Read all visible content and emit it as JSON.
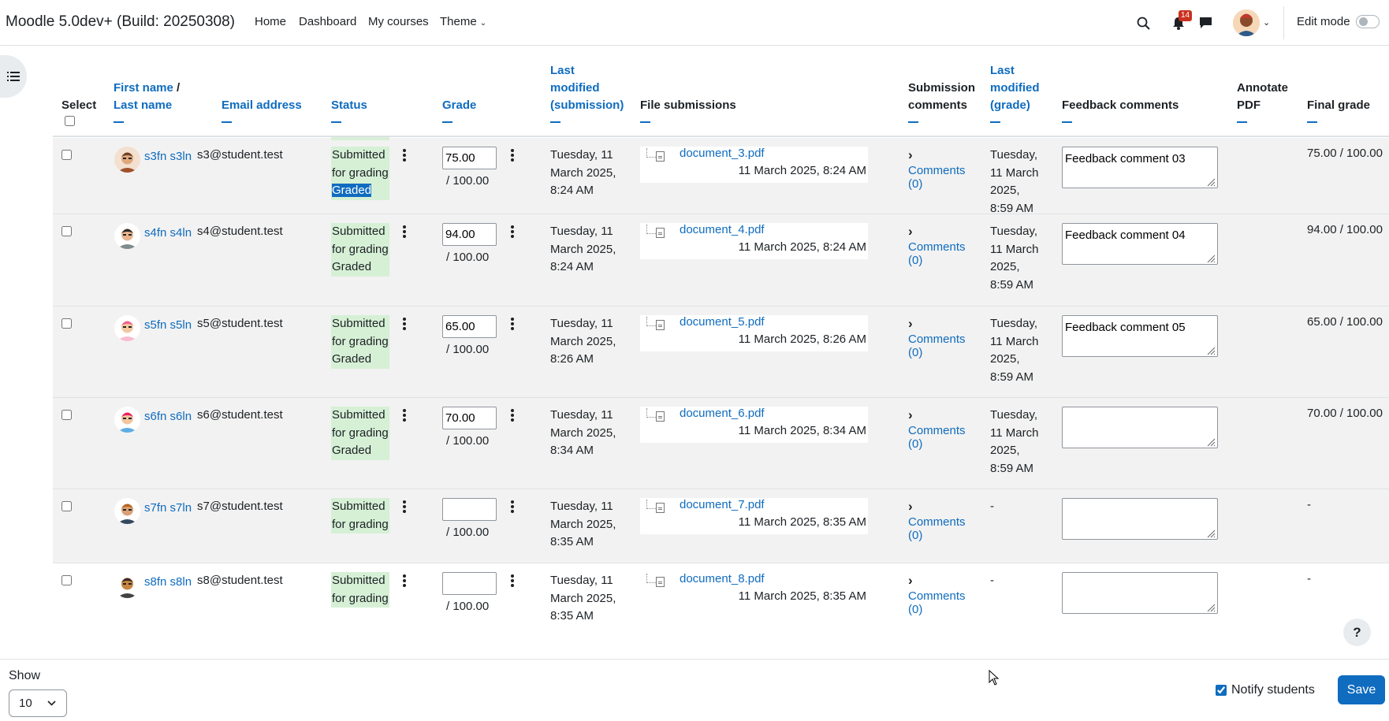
{
  "navbar": {
    "site_name": "Moodle 5.0dev+ (Build: 20250308)",
    "links": [
      "Home",
      "Dashboard",
      "My courses",
      "Theme"
    ],
    "notification_count": "14",
    "edit_mode_label": "Edit mode",
    "edit_mode_on": false
  },
  "table": {
    "headers": {
      "select": "Select",
      "first_name": "First name",
      "slash": " /",
      "last_name": "Last name",
      "email": "Email address",
      "status": "Status",
      "grade": "Grade",
      "last_modified_submission": "Last modified (submission)",
      "file_submissions": "File submissions",
      "submission_comments": "Submission comments",
      "last_modified_grade": "Last modified (grade)",
      "feedback_comments": "Feedback comments",
      "annotate_pdf": "Annotate PDF",
      "final_grade": "Final grade"
    },
    "rows": [
      {
        "name": "s3fn s3ln",
        "email": "s3@student.test",
        "status_submitted": "Submitted for grading",
        "status_graded": "Graded",
        "grade": "75.00",
        "grade_max": "/ 100.00",
        "modified": "Tuesday, 11 March 2025, 8:24 AM",
        "file": "document_3.pdf",
        "file_date": "11 March 2025, 8:24 AM",
        "comments": "Comments (0)",
        "grade_modified": "Tuesday, 11 March 2025, 8:59 AM",
        "feedback": "Feedback comment 03",
        "final": "75.00 / 100.00"
      },
      {
        "name": "s4fn s4ln",
        "email": "s4@student.test",
        "status_submitted": "Submitted for grading",
        "status_graded": "Graded",
        "grade": "94.00",
        "grade_max": "/ 100.00",
        "modified": "Tuesday, 11 March 2025, 8:24 AM",
        "file": "document_4.pdf",
        "file_date": "11 March 2025, 8:24 AM",
        "comments": "Comments (0)",
        "grade_modified": "Tuesday, 11 March 2025, 8:59 AM",
        "feedback": "Feedback comment 04",
        "final": "94.00 / 100.00"
      },
      {
        "name": "s5fn s5ln",
        "email": "s5@student.test",
        "status_submitted": "Submitted for grading",
        "status_graded": "Graded",
        "grade": "65.00",
        "grade_max": "/ 100.00",
        "modified": "Tuesday, 11 March 2025, 8:26 AM",
        "file": "document_5.pdf",
        "file_date": "11 March 2025, 8:26 AM",
        "comments": "Comments (0)",
        "grade_modified": "Tuesday, 11 March 2025, 8:59 AM",
        "feedback": "Feedback comment 05",
        "final": "65.00 / 100.00"
      },
      {
        "name": "s6fn s6ln",
        "email": "s6@student.test",
        "status_submitted": "Submitted for grading",
        "status_graded": "Graded",
        "grade": "70.00",
        "grade_max": "/ 100.00",
        "modified": "Tuesday, 11 March 2025, 8:34 AM",
        "file": "document_6.pdf",
        "file_date": "11 March 2025, 8:34 AM",
        "comments": "Comments (0)",
        "grade_modified": "Tuesday, 11 March 2025, 8:59 AM",
        "feedback": "",
        "final": "70.00 / 100.00"
      },
      {
        "name": "s7fn s7ln",
        "email": "s7@student.test",
        "status_submitted": "Submitted for grading",
        "status_graded": "",
        "grade": "",
        "grade_max": "/ 100.00",
        "modified": "Tuesday, 11 March 2025, 8:35 AM",
        "file": "document_7.pdf",
        "file_date": "11 March 2025, 8:35 AM",
        "comments": "Comments (0)",
        "grade_modified": "-",
        "feedback": "",
        "final": "-"
      },
      {
        "name": "s8fn s8ln",
        "email": "s8@student.test",
        "status_submitted": "Submitted for grading",
        "status_graded": "",
        "grade": "",
        "grade_max": "/ 100.00",
        "modified": "Tuesday, 11 March 2025, 8:35 AM",
        "file": "document_8.pdf",
        "file_date": "11 March 2025, 8:35 AM",
        "comments": "Comments (0)",
        "grade_modified": "-",
        "feedback": "",
        "final": "-"
      }
    ]
  },
  "footer": {
    "show_label": "Show",
    "show_value": "10",
    "notify_label": "Notify students",
    "notify_checked": true,
    "save_label": "Save"
  },
  "help_label": "?",
  "colors": {
    "accent": "#0f6cbf",
    "status_bg": "#d6f0d6",
    "row_shade": "#f2f2f2",
    "badge": "#ca3120"
  },
  "icons": [
    "search-icon",
    "bell-icon",
    "message-icon",
    "user-avatar",
    "index-drawer-icon",
    "kebab-menu-icon",
    "file-icon",
    "chevron-right-icon",
    "chevron-down-icon",
    "question-icon"
  ]
}
